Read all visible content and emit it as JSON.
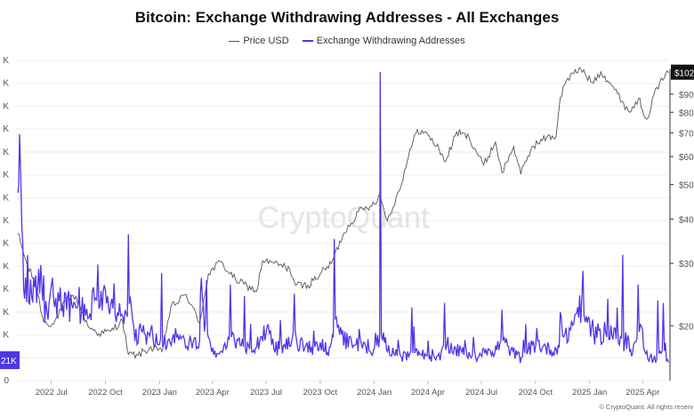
{
  "title": "Bitcoin: Exchange Withdrawing Addresses - All Exchanges",
  "legend": {
    "price_label": "Price USD",
    "addresses_label": "Exchange Withdrawing Addresses"
  },
  "watermark": "CryptoQuant",
  "copyright": "© CryptoQuant. All rights reserv",
  "colors": {
    "price": "#555555",
    "addresses": "#4f37e8",
    "grid": "#eeeeee",
    "badge": "#111111"
  },
  "chart_data": {
    "type": "line",
    "title": "Bitcoin: Exchange Withdrawing Addresses - All Exchanges",
    "x_ticks": [
      "2022 Jul",
      "2022 Oct",
      "2023 Jan",
      "2023 Apr",
      "2023 Jul",
      "2023 Oct",
      "2024 Jan",
      "2024 Apr",
      "2024 Jul",
      "2024 Oct",
      "2025 Jan",
      "2025 Apr"
    ],
    "left_axis": {
      "ticks": [
        "0",
        "K",
        "K",
        "K",
        "K",
        "K",
        "K",
        "K",
        "K",
        "K",
        "K",
        "K",
        "K",
        "K",
        "K"
      ],
      "current_badge": "21K"
    },
    "right_axis": {
      "scale": "log",
      "ticks": [
        "$20",
        "$30",
        "$40",
        "$50",
        "$60",
        "$70",
        "$80",
        "$90"
      ],
      "current_badge": "$102"
    },
    "series": [
      {
        "name": "Price USD",
        "axis": "right",
        "x": [
          "2022-05-05",
          "2022-05-20",
          "2022-06-05",
          "2022-06-18",
          "2022-07-05",
          "2022-07-25",
          "2022-08-12",
          "2022-09-01",
          "2022-09-20",
          "2022-10-10",
          "2022-10-30",
          "2022-11-09",
          "2022-11-25",
          "2022-12-15",
          "2023-01-05",
          "2023-01-20",
          "2023-02-15",
          "2023-03-10",
          "2023-03-25",
          "2023-04-14",
          "2023-05-10",
          "2023-06-15",
          "2023-06-25",
          "2023-07-15",
          "2023-08-10",
          "2023-08-20",
          "2023-09-10",
          "2023-10-01",
          "2023-10-20",
          "2023-11-10",
          "2023-12-05",
          "2023-12-25",
          "2024-01-11",
          "2024-01-23",
          "2024-02-12",
          "2024-02-28",
          "2024-03-14",
          "2024-04-01",
          "2024-04-20",
          "2024-05-01",
          "2024-05-20",
          "2024-06-10",
          "2024-07-05",
          "2024-07-25",
          "2024-08-05",
          "2024-08-25",
          "2024-09-06",
          "2024-09-25",
          "2024-10-20",
          "2024-11-05",
          "2024-11-12",
          "2024-11-22",
          "2024-12-05",
          "2024-12-17",
          "2025-01-05",
          "2025-01-20",
          "2025-02-05",
          "2025-02-25",
          "2025-03-10",
          "2025-03-25",
          "2025-04-08",
          "2025-04-25",
          "2025-05-08",
          "2025-05-15"
        ],
        "values": [
          36.5,
          30.0,
          26.0,
          20.5,
          20.2,
          23.5,
          24.2,
          20.0,
          19.0,
          19.3,
          20.7,
          16.6,
          16.5,
          17.3,
          16.9,
          22.5,
          24.5,
          20.4,
          28.0,
          30.3,
          27.0,
          25.0,
          30.5,
          30.0,
          29.0,
          26.0,
          26.0,
          28.0,
          30.0,
          36.5,
          42.0,
          43.5,
          46.5,
          39.5,
          48.0,
          60.0,
          71.5,
          69.0,
          63.0,
          58.0,
          70.5,
          68.0,
          56.8,
          66.0,
          54.0,
          64.0,
          53.5,
          64.0,
          68.0,
          68.5,
          88.0,
          98.0,
          103.0,
          106.0,
          97.0,
          104.0,
          97.0,
          86.0,
          80.0,
          87.5,
          76.5,
          94.0,
          100.0,
          103.5
        ]
      },
      {
        "name": "Exchange Withdrawing Addresses",
        "axis": "left",
        "note": "daily series, plotted in left-axis tick units (0 = baseline, 14 = top)",
        "x": [
          "2022-05-05",
          "2022-05-08",
          "2022-05-10",
          "2022-05-12",
          "2022-05-15",
          "2022-05-20",
          "2022-06-01",
          "2022-06-13",
          "2022-06-18",
          "2022-07-01",
          "2022-07-20",
          "2022-08-10",
          "2022-09-01",
          "2022-09-20",
          "2022-10-10",
          "2022-10-25",
          "2022-11-09",
          "2022-11-12",
          "2022-11-20",
          "2022-12-01",
          "2022-12-15",
          "2023-01-01",
          "2023-01-15",
          "2023-02-01",
          "2023-02-20",
          "2023-03-10",
          "2023-03-13",
          "2023-03-20",
          "2023-04-05",
          "2023-04-20",
          "2023-05-05",
          "2023-05-20",
          "2023-06-10",
          "2023-06-20",
          "2023-07-01",
          "2023-07-20",
          "2023-08-10",
          "2023-08-18",
          "2023-09-01",
          "2023-09-20",
          "2023-10-05",
          "2023-10-15",
          "2023-10-25",
          "2023-11-10",
          "2023-11-25",
          "2023-12-10",
          "2023-12-25",
          "2024-01-05",
          "2024-01-10",
          "2024-01-11",
          "2024-01-13",
          "2024-01-20",
          "2024-02-05",
          "2024-02-25",
          "2024-03-10",
          "2024-03-20",
          "2024-04-05",
          "2024-04-20",
          "2024-05-05",
          "2024-05-20",
          "2024-06-10",
          "2024-06-25",
          "2024-07-05",
          "2024-07-20",
          "2024-08-05",
          "2024-08-20",
          "2024-09-05",
          "2024-09-20",
          "2024-10-05",
          "2024-10-20",
          "2024-11-05",
          "2024-11-12",
          "2024-11-20",
          "2024-12-05",
          "2024-12-15",
          "2024-12-30",
          "2025-01-15",
          "2025-01-30",
          "2025-02-15",
          "2025-02-28",
          "2025-03-05",
          "2025-03-15",
          "2025-03-30",
          "2025-04-10",
          "2025-04-25",
          "2025-05-08",
          "2025-05-15"
        ],
        "values": [
          10.0,
          9.0,
          8.0,
          7.0,
          4.8,
          4.2,
          3.8,
          4.6,
          3.2,
          3.6,
          3.4,
          3.1,
          3.0,
          3.8,
          3.0,
          2.9,
          2.6,
          3.3,
          1.8,
          2.1,
          1.9,
          1.6,
          1.8,
          2.0,
          1.6,
          1.5,
          4.2,
          2.2,
          1.1,
          1.5,
          1.8,
          1.6,
          1.5,
          1.8,
          2.2,
          1.4,
          1.6,
          1.8,
          1.5,
          1.4,
          1.6,
          1.3,
          2.4,
          1.8,
          1.6,
          1.5,
          1.2,
          1.6,
          1.9,
          13.5,
          2.0,
          1.6,
          1.2,
          1.0,
          1.4,
          1.2,
          0.9,
          1.0,
          1.5,
          1.3,
          1.2,
          1.0,
          1.5,
          1.1,
          1.8,
          1.3,
          1.0,
          1.4,
          1.6,
          1.4,
          1.3,
          2.0,
          1.8,
          2.6,
          3.3,
          2.4,
          1.8,
          2.3,
          2.0,
          1.4,
          1.6,
          1.3,
          2.2,
          1.1,
          0.9,
          1.3,
          0.8
        ]
      }
    ],
    "spikes_left_units": [
      {
        "x": "2022-05-09",
        "value": 9.0
      },
      {
        "x": "2022-06-18",
        "value": 4.6
      },
      {
        "x": "2022-07-02",
        "value": 4.5
      },
      {
        "x": "2022-08-17",
        "value": 4.1
      },
      {
        "x": "2022-09-14",
        "value": 3.6
      },
      {
        "x": "2022-11-09",
        "value": 6.4
      },
      {
        "x": "2023-01-05",
        "value": 4.7
      },
      {
        "x": "2023-03-13",
        "value": 4.5
      },
      {
        "x": "2023-03-22",
        "value": 4.4
      },
      {
        "x": "2023-05-01",
        "value": 4.2
      },
      {
        "x": "2023-05-25",
        "value": 3.7
      },
      {
        "x": "2023-08-18",
        "value": 3.8
      },
      {
        "x": "2023-10-25",
        "value": 6.2
      },
      {
        "x": "2024-01-11",
        "value": 13.5
      },
      {
        "x": "2024-03-05",
        "value": 3.2
      },
      {
        "x": "2024-04-30",
        "value": 3.4
      },
      {
        "x": "2024-08-05",
        "value": 3.1
      },
      {
        "x": "2024-11-12",
        "value": 3.0
      },
      {
        "x": "2024-12-20",
        "value": 4.8
      },
      {
        "x": "2025-02-27",
        "value": 5.5
      },
      {
        "x": "2025-03-25",
        "value": 4.2
      },
      {
        "x": "2025-04-27",
        "value": 3.5
      },
      {
        "x": "2025-05-06",
        "value": 3.4
      }
    ]
  }
}
